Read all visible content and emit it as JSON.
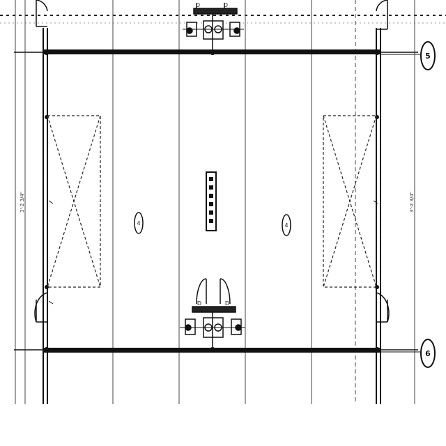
{
  "drawing": {
    "type": "architectural floor plan",
    "style": "black line drawing on white"
  },
  "grid_bubbles": {
    "upper": "5",
    "lower": "6"
  },
  "room_markers": {
    "left": "4",
    "right": "4"
  },
  "side_dimension_notes": {
    "left": "3'-2 3/4\"",
    "right": "3'-2 3/4\""
  },
  "door_tags": {
    "top_left": "D",
    "top_right": "D",
    "bottom_left": "D",
    "bottom_right": "D"
  }
}
